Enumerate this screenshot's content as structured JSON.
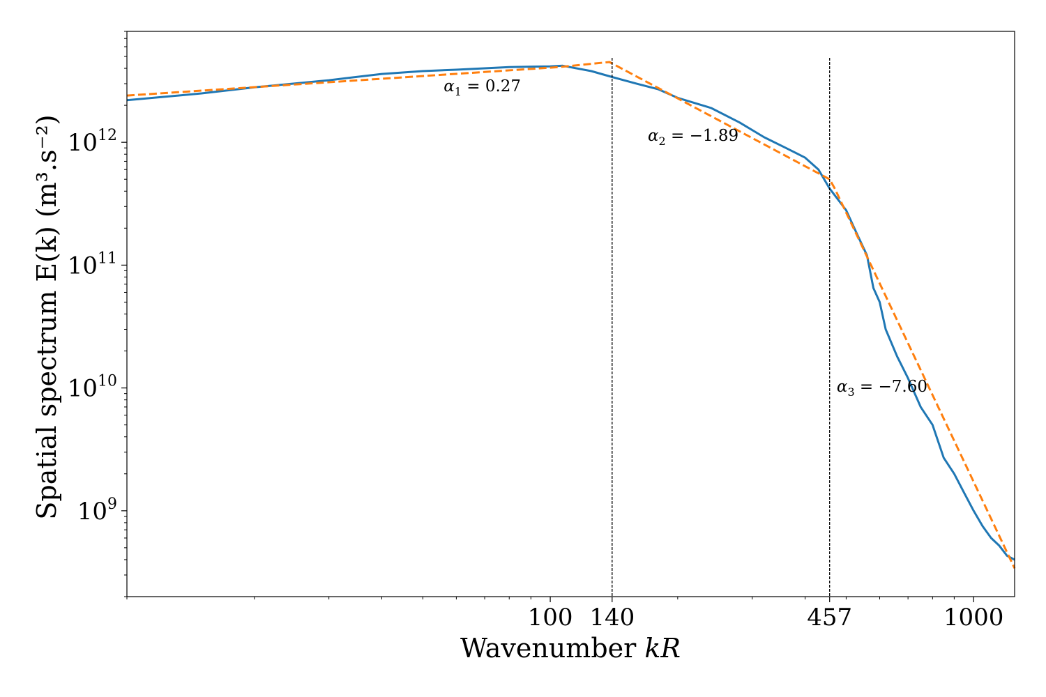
{
  "chart_data": {
    "type": "line",
    "x_scale": "log",
    "y_scale": "log",
    "xlim": [
      10,
      1250
    ],
    "ylim": [
      200000000,
      8000000000000
    ],
    "xlabel_text": "Wavenumber ",
    "xlabel_var": "kR",
    "ylabel": "Spatial spectrum E(k) (m³.s⁻²)",
    "x_ticks": [
      {
        "value": 100,
        "label": "100"
      },
      {
        "value": 140,
        "label": "140"
      },
      {
        "value": 457,
        "label": "457"
      },
      {
        "value": 1000,
        "label": "1000"
      }
    ],
    "y_ticks": [
      {
        "value": 1000000000000,
        "base": "10",
        "exp": "12"
      },
      {
        "value": 100000000000,
        "base": "10",
        "exp": "11"
      },
      {
        "value": 10000000000,
        "base": "10",
        "exp": "10"
      },
      {
        "value": 1000000000,
        "base": "10",
        "exp": "9"
      }
    ],
    "vlines": [
      140,
      457
    ],
    "grid": false,
    "series": [
      {
        "color": "#1f77b4",
        "style": "solid",
        "x": [
          10,
          15,
          20,
          30,
          40,
          50,
          60,
          70,
          80,
          100,
          107,
          125,
          140,
          160,
          180,
          200,
          240,
          280,
          320,
          360,
          400,
          430,
          457,
          470,
          500,
          530,
          560,
          580,
          600,
          620,
          660,
          700,
          750,
          800,
          850,
          900,
          950,
          1000,
          1050,
          1100,
          1150,
          1200,
          1250
        ],
        "y": [
          2200000000000,
          2500000000000,
          2800000000000,
          3200000000000,
          3600000000000,
          3800000000000,
          3900000000000,
          4000000000000,
          4100000000000,
          4150000000000,
          4200000000000,
          3800000000000,
          3400000000000,
          3000000000000,
          2700000000000,
          2300000000000,
          1900000000000,
          1450000000000,
          1100000000000,
          900000000000,
          750000000000,
          600000000000,
          420000000000,
          370000000000,
          280000000000,
          180000000000,
          120000000000,
          65000000000,
          50000000000,
          30000000000,
          18000000000,
          12000000000,
          7000000000,
          5000000000,
          2700000000,
          2000000000,
          1400000000,
          1000000000,
          750000000,
          600000000,
          520000000,
          430000000,
          400000000
        ]
      },
      {
        "color": "#ff7f0e",
        "style": "dashed",
        "x": [
          10,
          105,
          138,
          457,
          470,
          1250
        ],
        "y": [
          2400000000000,
          4100000000000,
          4500000000000,
          500000000000,
          420000000000,
          340000000
        ]
      }
    ],
    "annotations": [
      {
        "x": 56,
        "y": 2600000000000,
        "base": "α",
        "sub": "1",
        "text": " = 0.27"
      },
      {
        "x": 170,
        "y": 1030000000000,
        "base": "α",
        "sub": "2",
        "text": " = −1.89"
      },
      {
        "x": 475,
        "y": 9300000000,
        "base": "α",
        "sub": "3",
        "text": " = −7.60"
      }
    ]
  }
}
